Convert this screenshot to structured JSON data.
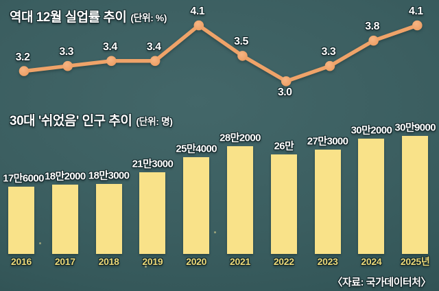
{
  "source": "〈자료: 국가데이터처〉",
  "chart_data": [
    {
      "type": "line",
      "title": "역대 12월 실업률 추이",
      "unit_label": "(단위: %)",
      "categories": [
        "2016",
        "2017",
        "2018",
        "2019",
        "2020",
        "2021",
        "2022",
        "2023",
        "2024",
        "2025년"
      ],
      "values": [
        3.2,
        3.3,
        3.4,
        3.4,
        4.1,
        3.5,
        3.0,
        3.3,
        3.8,
        4.1
      ],
      "point_labels": [
        "3.2",
        "3.3",
        "3.4",
        "3.4",
        "4.1",
        "3.5",
        "3.0",
        "3.3",
        "3.8",
        "4.1"
      ],
      "label_below_indices": [
        6
      ],
      "line_color": "#efa369",
      "ylim": [
        2.8,
        4.3
      ],
      "legend": "none",
      "grid": false
    },
    {
      "type": "bar",
      "title": "30대 '쉬었음' 인구 추이",
      "unit_label": "(단위: 명)",
      "categories": [
        "2016",
        "2017",
        "2018",
        "2019",
        "2020",
        "2021",
        "2022",
        "2023",
        "2024",
        "2025년"
      ],
      "values": [
        176000,
        182000,
        183000,
        213000,
        254000,
        282000,
        260000,
        273000,
        302000,
        309000
      ],
      "value_labels": [
        "17만6000",
        "18만2000",
        "18만3000",
        "21만3000",
        "25만4000",
        "28만2000",
        "26만",
        "27만3000",
        "30만2000",
        "30만9000"
      ],
      "bar_color": "#f9e289",
      "category_color": "#ead879",
      "legend": "none",
      "grid": false
    }
  ]
}
